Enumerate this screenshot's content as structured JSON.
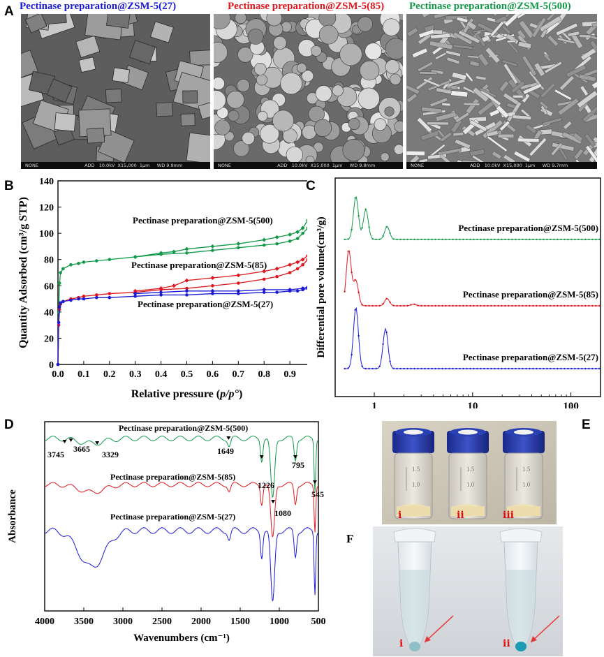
{
  "panels": {
    "A": "A",
    "B": "B",
    "C": "C",
    "D": "D",
    "E": "E",
    "F": "F"
  },
  "colors": {
    "zsm27": "#1a1ad6",
    "zsm85": "#e0161c",
    "zsm500": "#129a4a"
  },
  "panelA": {
    "titles": [
      "Pectinase preparation@ZSM-5(27)",
      "Pectinase preparation@ZSM-5(85)",
      "Pectinase preparation@ZSM-5(500)"
    ],
    "sem_bars": [
      "NONE                                ADD   10.0kV  X15,000  1μm     WD 9.9mm",
      "NONE                                ADD   10.0kV  X15,000  1μm     WD 9.8mm",
      "NONE                                ADD   10.0kV  X15,000  1μm     WD 9.7mm"
    ]
  },
  "panelB": {
    "chart_data": {
      "type": "line",
      "xlabel_prefix": "Relative pressure (",
      "xlabel_italic": "p/p°",
      "xlabel_suffix": ")",
      "ylabel": "Quantity Adsorbed (cm³/g STP)",
      "xlim": [
        0,
        1.0
      ],
      "ylim": [
        0,
        140
      ],
      "xticks": [
        "0.0",
        "0.1",
        "0.2",
        "0.3",
        "0.4",
        "0.5",
        "0.6",
        "0.7",
        "0.8",
        "0.9",
        "1.0"
      ],
      "yticks": [
        "0",
        "20",
        "40",
        "60",
        "80",
        "100",
        "120",
        "140"
      ],
      "series": [
        {
          "name": "Pectinase preparation@ZSM-5(500)",
          "x": [
            0,
            0.003,
            0.006,
            0.01,
            0.02,
            0.05,
            0.08,
            0.1,
            0.15,
            0.2,
            0.3,
            0.4,
            0.5,
            0.6,
            0.7,
            0.8,
            0.85,
            0.9,
            0.93,
            0.95,
            0.97,
            0.98,
            0.99,
            1.0
          ],
          "adsorption": [
            0,
            40,
            62,
            70,
            73,
            76,
            77,
            78,
            79,
            80,
            82,
            84,
            85,
            87,
            89,
            91,
            92,
            94,
            96,
            100,
            104,
            108,
            116,
            132
          ],
          "desorption_x": [
            1.0,
            0.99,
            0.98,
            0.97,
            0.95,
            0.93,
            0.9,
            0.85,
            0.8,
            0.7,
            0.6,
            0.5,
            0.45,
            0.4,
            0.3
          ],
          "desorption": [
            132,
            120,
            114,
            110,
            104,
            101,
            99,
            97,
            95,
            92,
            90,
            88,
            86,
            85,
            82
          ]
        },
        {
          "name": "Pectinase preparation@ZSM-5(85)",
          "x": [
            0,
            0.003,
            0.006,
            0.01,
            0.02,
            0.05,
            0.08,
            0.1,
            0.15,
            0.2,
            0.3,
            0.4,
            0.5,
            0.6,
            0.7,
            0.8,
            0.85,
            0.9,
            0.93,
            0.95,
            0.97,
            0.98,
            0.99,
            1.0
          ],
          "adsorption": [
            0,
            30,
            42,
            46,
            48,
            50,
            51,
            52,
            53,
            54,
            55,
            57,
            58,
            60,
            62,
            65,
            67,
            70,
            73,
            76,
            80,
            84,
            88,
            97
          ],
          "desorption_x": [
            1.0,
            0.99,
            0.98,
            0.97,
            0.95,
            0.93,
            0.9,
            0.85,
            0.8,
            0.7,
            0.6,
            0.5,
            0.45,
            0.4,
            0.3
          ],
          "desorption": [
            97,
            90,
            86,
            83,
            80,
            78,
            76,
            73,
            71,
            68,
            66,
            64,
            60,
            58,
            56
          ]
        },
        {
          "name": "Pectinase preparation@ZSM-5(27)",
          "x": [
            0,
            0.003,
            0.006,
            0.01,
            0.02,
            0.05,
            0.08,
            0.1,
            0.15,
            0.2,
            0.3,
            0.4,
            0.5,
            0.6,
            0.7,
            0.8,
            0.85,
            0.9,
            0.93,
            0.95,
            0.97,
            0.98,
            0.99,
            1.0
          ],
          "adsorption": [
            0,
            32,
            44,
            47,
            48,
            49,
            50,
            50,
            51,
            51,
            52,
            53,
            53,
            54,
            54,
            55,
            55,
            56,
            56,
            57,
            58,
            59,
            60,
            62
          ],
          "desorption_x": [
            1.0,
            0.99,
            0.98,
            0.97,
            0.95,
            0.9,
            0.8,
            0.7,
            0.6,
            0.5,
            0.4,
            0.3
          ],
          "desorption": [
            62,
            61,
            60,
            59,
            58,
            57,
            57,
            56,
            56,
            56,
            55,
            54
          ]
        }
      ]
    }
  },
  "panelC": {
    "chart_data": {
      "type": "line",
      "ylabel": "Differential pore volume(cm³/g)",
      "xscale": "log",
      "xlim": [
        0.4,
        200
      ],
      "xticks": [
        "1",
        "10",
        "100"
      ],
      "series": [
        {
          "name": "Pectinase preparation@ZSM-5(500)",
          "peaks_x": [
            0.65,
            0.82,
            1.35
          ],
          "peaks_h": [
            1.0,
            0.7,
            0.3
          ]
        },
        {
          "name": "Pectinase preparation@ZSM-5(85)",
          "peaks_x": [
            0.55,
            0.65,
            1.35,
            2.5
          ],
          "peaks_h": [
            1.0,
            0.45,
            0.13,
            0.03
          ]
        },
        {
          "name": "Pectinase preparation@ZSM-5(27)",
          "peaks_x": [
            0.65,
            1.3
          ],
          "peaks_h": [
            1.0,
            0.65
          ]
        }
      ]
    }
  },
  "panelD": {
    "chart_data": {
      "type": "line",
      "xlabel": "Wavenumbers (cm⁻¹)",
      "ylabel": "Absorbance",
      "xlim": [
        4000,
        500
      ],
      "xticks": [
        "4000",
        "3500",
        "3000",
        "2500",
        "2000",
        "1500",
        "1000",
        "500"
      ],
      "series": [
        {
          "name": "Pectinase preparation@ZSM-5(500)"
        },
        {
          "name": "Pectinase preparation@ZSM-5(85)"
        },
        {
          "name": "Pectinase preparation@ZSM-5(27)"
        }
      ],
      "annotations": [
        "3745",
        "3665",
        "3329",
        "1649",
        "1226",
        "1080",
        "795",
        "545"
      ]
    }
  },
  "panelE": {
    "vial_labels": [
      "i",
      "ii",
      "iii"
    ],
    "vial_marks": [
      "1.5",
      "1.0"
    ]
  },
  "panelF": {
    "tube_labels": [
      "i",
      "ii"
    ]
  }
}
